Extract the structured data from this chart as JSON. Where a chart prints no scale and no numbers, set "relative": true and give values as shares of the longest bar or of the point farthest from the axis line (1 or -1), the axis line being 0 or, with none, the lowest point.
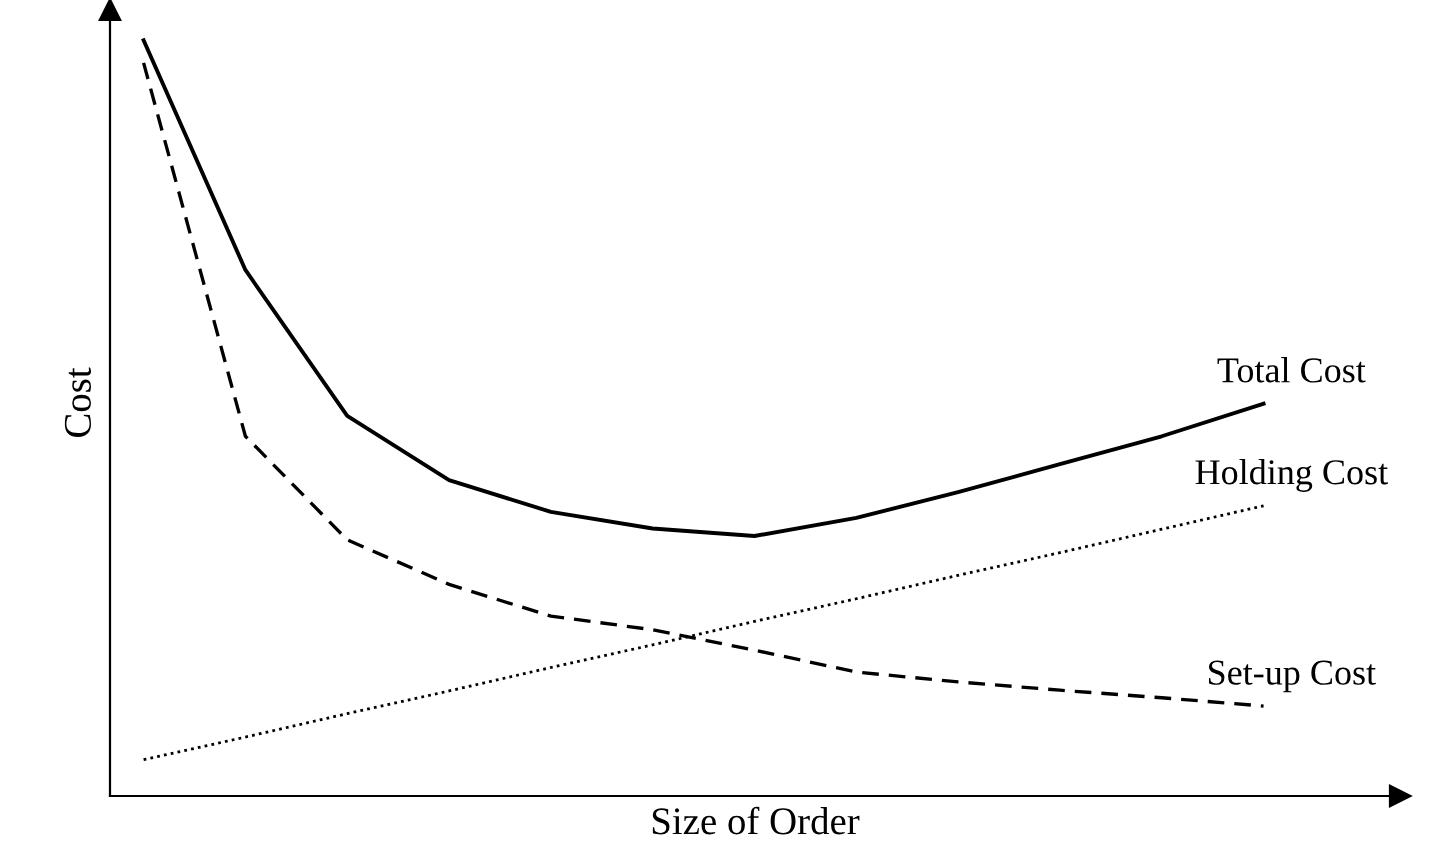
{
  "chart_data": {
    "type": "line",
    "relative": true,
    "xlabel": "Size of Order",
    "ylabel": "Cost",
    "legend": false,
    "tick_labels": false,
    "categories": [
      null,
      null,
      null,
      null,
      null,
      null,
      null,
      null,
      null,
      null,
      null,
      null
    ],
    "series": [
      {
        "name": "Total Cost",
        "color": "#000000",
        "line_style": "solid",
        "values": [
          1.0,
          0.696,
          0.503,
          0.418,
          0.376,
          0.354,
          0.344,
          0.368,
          0.402,
          0.439,
          0.476,
          0.519
        ]
      },
      {
        "name": "Holding Cost",
        "color": "#000000",
        "line_style": "dotted",
        "values": [
          0.048,
          0.078,
          0.109,
          0.139,
          0.17,
          0.2,
          0.231,
          0.261,
          0.292,
          0.322,
          0.353,
          0.384
        ]
      },
      {
        "name": "Set-up Cost",
        "color": "#000000",
        "line_style": "dashed",
        "values": [
          0.97,
          0.476,
          0.339,
          0.28,
          0.238,
          0.22,
          0.193,
          0.164,
          0.151,
          0.14,
          0.13,
          0.119
        ]
      }
    ]
  }
}
